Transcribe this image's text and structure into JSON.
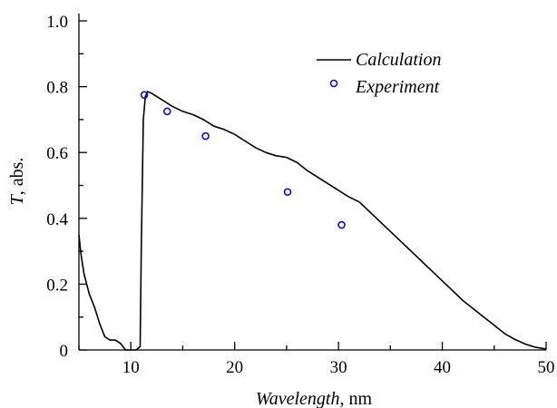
{
  "chart_data": {
    "type": "line",
    "xlabel_italic": "Wavelength",
    "xlabel_unit": ", nm",
    "ylabel_italic": "T",
    "ylabel_unit": ", abs.",
    "xlim": [
      5,
      50
    ],
    "ylim": [
      0,
      1.0
    ],
    "xticks": [
      10,
      20,
      30,
      40,
      50
    ],
    "xtick_labels": [
      "10",
      "20",
      "30",
      "40",
      "50"
    ],
    "yticks": [
      0,
      0.2,
      0.4,
      0.6,
      0.8,
      1.0
    ],
    "ytick_labels": [
      "0",
      "0.2",
      "0.4",
      "0.6",
      "0.8",
      "1.0"
    ],
    "legend_position": "top-right",
    "series": [
      {
        "name": "Calculation",
        "style": "line",
        "color": "#000000",
        "x": [
          5,
          5.2,
          5.5,
          6.0,
          6.5,
          7.0,
          7.5,
          8.0,
          8.5,
          9.0,
          9.5,
          10.0,
          10.5,
          10.9,
          11.0,
          11.2,
          11.4,
          11.6,
          12.0,
          13.0,
          14.0,
          15.0,
          16.0,
          17.0,
          18.0,
          19.0,
          20.0,
          21.0,
          22.0,
          23.0,
          24.0,
          25.0,
          26.0,
          27.0,
          28.0,
          29.0,
          30.0,
          31.0,
          32.0,
          33.0,
          34.0,
          35.0,
          36.0,
          37.0,
          38.0,
          39.0,
          40.0,
          41.0,
          42.0,
          43.0,
          44.0,
          45.0,
          46.0,
          47.0,
          48.0,
          49.0,
          50.0
        ],
        "y": [
          0.35,
          0.29,
          0.23,
          0.17,
          0.13,
          0.08,
          0.04,
          0.03,
          0.03,
          0.02,
          0.0,
          0.0,
          0.0,
          0.01,
          0.3,
          0.7,
          0.77,
          0.785,
          0.78,
          0.76,
          0.74,
          0.725,
          0.715,
          0.7,
          0.68,
          0.67,
          0.655,
          0.635,
          0.615,
          0.6,
          0.59,
          0.585,
          0.57,
          0.545,
          0.525,
          0.505,
          0.485,
          0.465,
          0.45,
          0.42,
          0.39,
          0.36,
          0.33,
          0.3,
          0.27,
          0.24,
          0.21,
          0.18,
          0.15,
          0.125,
          0.1,
          0.075,
          0.05,
          0.032,
          0.018,
          0.008,
          0.003
        ]
      },
      {
        "name": "Experiment",
        "style": "markers",
        "color": "#0a0ad2",
        "x": [
          11.3,
          13.5,
          17.2,
          25.1,
          30.3
        ],
        "y": [
          0.775,
          0.725,
          0.65,
          0.48,
          0.38
        ]
      }
    ]
  }
}
